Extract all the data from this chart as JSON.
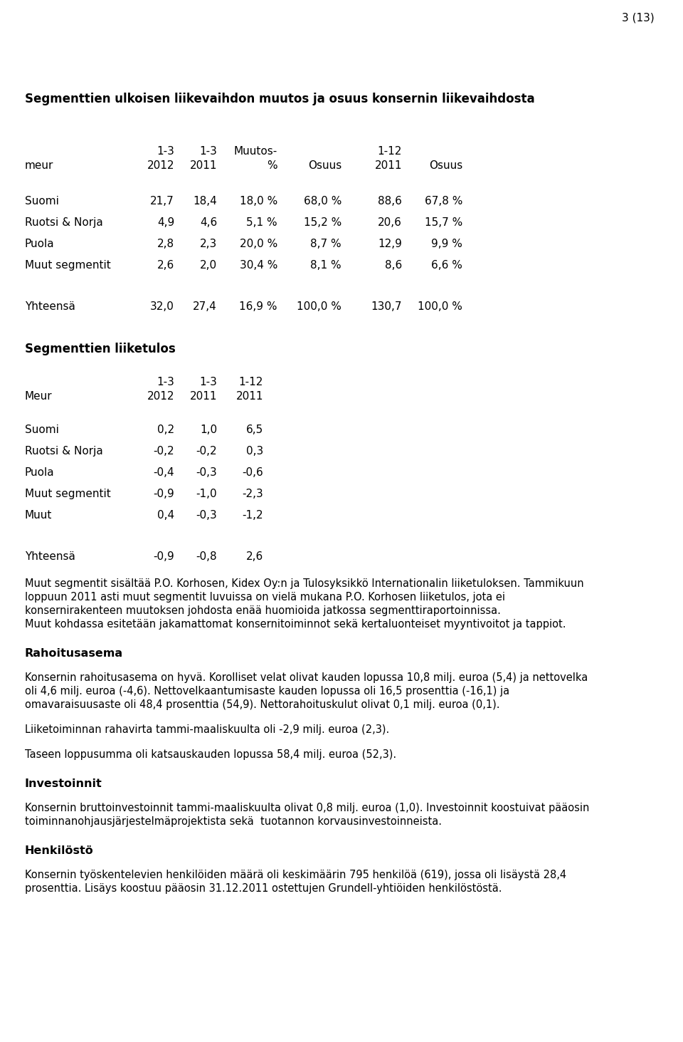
{
  "page_number": "3 (13)",
  "section1_title": "Segmenttien ulkoisen liikevaihdon muutos ja osuus konsernin liikevaihdosta",
  "table1_header_row1": [
    "",
    "1-3",
    "1-3",
    "Muutos-",
    "",
    "1-12",
    ""
  ],
  "table1_header_row2": [
    "meur",
    "2012",
    "2011",
    "%",
    "Osuus",
    "2011",
    "Osuus"
  ],
  "table1_rows": [
    [
      "Suomi",
      "21,7",
      "18,4",
      "18,0 %",
      "68,0 %",
      "88,6",
      "67,8 %"
    ],
    [
      "Ruotsi & Norja",
      "4,9",
      "4,6",
      "5,1 %",
      "15,2 %",
      "20,6",
      "15,7 %"
    ],
    [
      "Puola",
      "2,8",
      "2,3",
      "20,0 %",
      "8,7 %",
      "12,9",
      "9,9 %"
    ],
    [
      "Muut segmentit",
      "2,6",
      "2,0",
      "30,4 %",
      "8,1 %",
      "8,6",
      "6,6 %"
    ]
  ],
  "table1_total_row": [
    "Yhteensä",
    "32,0",
    "27,4",
    "16,9 %",
    "100,0 %",
    "130,7",
    "100,0 %"
  ],
  "section2_title": "Segmenttien liiketulos",
  "table2_header_row1": [
    "",
    "1-3",
    "1-3",
    "1-12"
  ],
  "table2_header_row2": [
    "Meur",
    "2012",
    "2011",
    "2011"
  ],
  "table2_rows": [
    [
      "Suomi",
      "0,2",
      "1,0",
      "6,5"
    ],
    [
      "Ruotsi & Norja",
      "-0,2",
      "-0,2",
      "0,3"
    ],
    [
      "Puola",
      "-0,4",
      "-0,3",
      "-0,6"
    ],
    [
      "Muut segmentit",
      "-0,9",
      "-1,0",
      "-2,3"
    ],
    [
      "Muut",
      "0,4",
      "-0,3",
      "-1,2"
    ]
  ],
  "table2_total_row": [
    "Yhteensä",
    "-0,9",
    "-0,8",
    "2,6"
  ],
  "footnote_line1": "Muut segmentit sisältää P.O. Korhosen, Kidex Oy:n ja Tulosyksikkö Internationalin liiketuloksen. Tammikuun",
  "footnote_line2": "loppuun 2011 asti muut segmentit luvuissa on vielä mukana P.O. Korhosen liiketulos, jota ei",
  "footnote_line3": "konsernirakenteen muutoksen johdosta enää huomioida jatkossa segmenttiraportoinnissa.",
  "footnote_line4": "Muut kohdassa esitetään jakamattomat konsernitoiminnot sekä kertaluonteiset myyntivoitot ja tappiot.",
  "section3_title": "Rahoitusasema",
  "section3_body_line1": "Konsernin rahoitusasema on hyvä. Korolliset velat olivat kauden lopussa 10,8 milj. euroa (5,4) ja nettovelka",
  "section3_body_line2": "oli 4,6 milj. euroa (-4,6). Nettovelkaantumisaste kauden lopussa oli 16,5 prosenttia (-16,1) ja",
  "section3_body_line3": "omavaraisuusaste oli 48,4 prosenttia (54,9). Nettorahoituskulut olivat 0,1 milj. euroa (0,1).",
  "section3_body2": "Liiketoiminnan rahavirta tammi-maaliskuulta oli -2,9 milj. euroa (2,3).",
  "section3_body3": "Taseen loppusumma oli katsauskauden lopussa 58,4 milj. euroa (52,3).",
  "section4_title": "Investoinnit",
  "section4_body_line1": "Konsernin bruttoinvestoinnit tammi-maaliskuulta olivat 0,8 milj. euroa (1,0). Investoinnit koostuivat pääosin",
  "section4_body_line2": "toiminnanohjausjärjestelmäprojektista sekä  tuotannon korvausinvestoinneista.",
  "section5_title": "Henkilöstö",
  "section5_body_line1": "Konsernin työskentelevien henkilöiden määrä oli keskimäärin 795 henkilöä (619), jossa oli lisäystä 28,4",
  "section5_body_line2": "prosenttia. Lisäys koostuu pääosin 31.12.2011 ostettujen Grundell-yhtiöiden henkilöstöstä.",
  "bg_color": "#ffffff",
  "text_color": "#000000"
}
